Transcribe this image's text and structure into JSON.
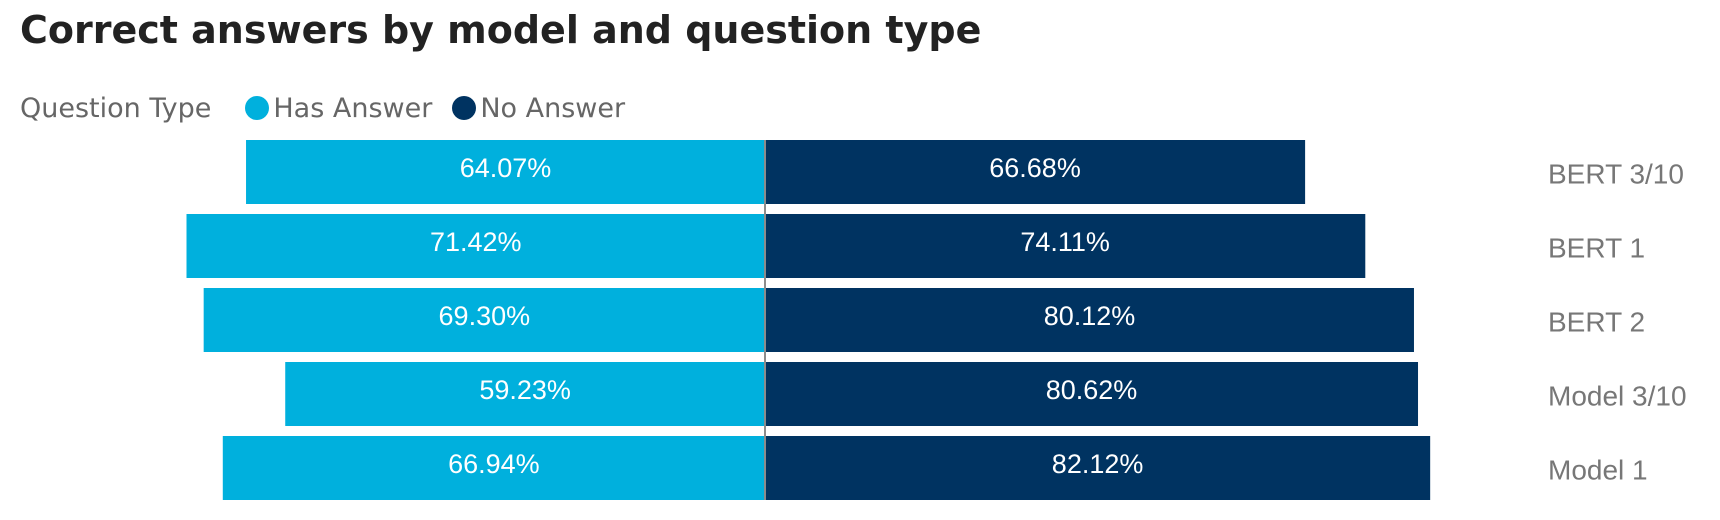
{
  "chart_data": {
    "type": "bar",
    "title": "Correct answers by model and question type",
    "legend_title": "Question Type",
    "legend_placement": "top-left",
    "orientation": "horizontal-diverging",
    "categories": [
      "BERT 3/10",
      "BERT 1",
      "BERT 2",
      "Model 3/10",
      "Model 1"
    ],
    "series": [
      {
        "name": "Has Answer",
        "color": "#00B0DD",
        "direction": "left",
        "values": [
          64.07,
          71.42,
          69.3,
          59.23,
          66.94
        ],
        "labels": [
          "64.07%",
          "71.42%",
          "69.30%",
          "59.23%",
          "66.94%"
        ]
      },
      {
        "name": "No Answer",
        "color": "#003361",
        "direction": "right",
        "values": [
          66.68,
          74.11,
          80.12,
          80.62,
          82.12
        ],
        "labels": [
          "66.68%",
          "74.11%",
          "80.12%",
          "80.62%",
          "82.12%"
        ]
      }
    ],
    "grid": false
  }
}
